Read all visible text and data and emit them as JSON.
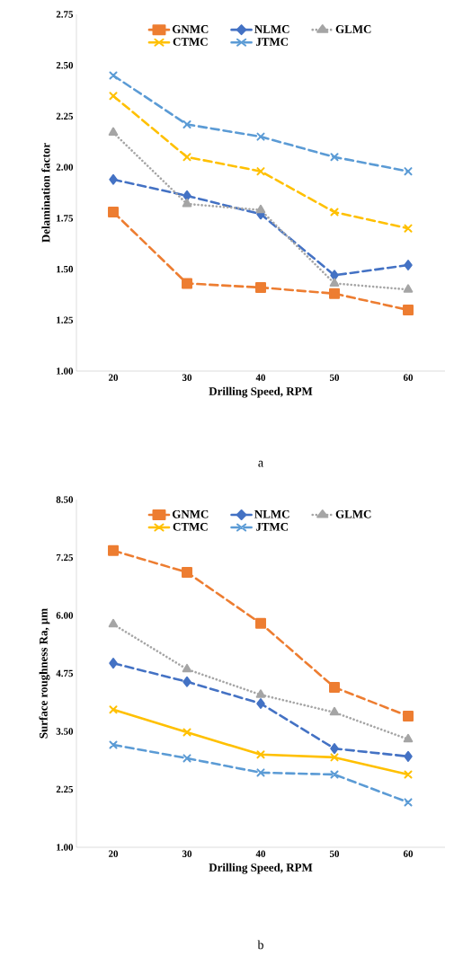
{
  "chart_data": [
    {
      "type": "line",
      "categories": [
        "20",
        "30",
        "40",
        "50",
        "60"
      ],
      "xlabel": "Drilling Speed, RPM",
      "ylabel": "Delamination factor",
      "ylim": [
        1.0,
        2.75
      ],
      "yticks": [
        {
          "value": 1.0,
          "label": "1.00"
        },
        {
          "value": 1.25,
          "label": "1.25"
        },
        {
          "value": 1.5,
          "label": "1.50"
        },
        {
          "value": 1.75,
          "label": "1.75"
        },
        {
          "value": 2.0,
          "label": "2.00"
        },
        {
          "value": 2.25,
          "label": "2.25"
        },
        {
          "value": 2.5,
          "label": "2.50"
        },
        {
          "value": 2.75,
          "label": "2.75"
        }
      ],
      "legend": "top",
      "annotations": [
        "a"
      ],
      "series": [
        {
          "name": "GNMC",
          "color": "#ed7d31",
          "marker": "square",
          "line_style": "dashed",
          "values": [
            1.78,
            1.43,
            1.41,
            1.38,
            1.3
          ]
        },
        {
          "name": "NLMC",
          "color": "#4472c4",
          "marker": "diamond",
          "line_style": "dashed",
          "values": [
            1.94,
            1.86,
            1.77,
            1.47,
            1.52
          ]
        },
        {
          "name": "GLMC",
          "color": "#a5a5a5",
          "marker": "triangle",
          "line_style": "dotted",
          "values": [
            2.17,
            1.82,
            1.79,
            1.43,
            1.4
          ]
        },
        {
          "name": "CTMC",
          "color": "#ffc000",
          "marker": "cross",
          "line_style": "dashed",
          "values": [
            2.35,
            2.05,
            1.98,
            1.78,
            1.7
          ]
        },
        {
          "name": "JTMC",
          "color": "#5b9bd5",
          "marker": "cross",
          "line_style": "dashed",
          "values": [
            2.45,
            2.21,
            2.15,
            2.05,
            1.98
          ]
        }
      ]
    },
    {
      "type": "line",
      "categories": [
        "20",
        "30",
        "40",
        "50",
        "60"
      ],
      "xlabel": "Drilling Speed, RPM",
      "ylabel": "Surface roughness Ra, µm",
      "ylim": [
        1.0,
        8.5
      ],
      "yticks": [
        {
          "value": 1.0,
          "label": "1.00"
        },
        {
          "value": 2.25,
          "label": "2.25"
        },
        {
          "value": 3.5,
          "label": "3.50"
        },
        {
          "value": 4.75,
          "label": "4.75"
        },
        {
          "value": 6.0,
          "label": "6.00"
        },
        {
          "value": 7.25,
          "label": "7.25"
        },
        {
          "value": 8.5,
          "label": "8.50"
        }
      ],
      "legend": "top",
      "annotations": [
        "b"
      ],
      "series": [
        {
          "name": "GNMC",
          "color": "#ed7d31",
          "marker": "square",
          "line_style": "dashed",
          "values": [
            7.4,
            6.93,
            5.83,
            4.45,
            3.83
          ]
        },
        {
          "name": "NLMC",
          "color": "#4472c4",
          "marker": "diamond",
          "line_style": "dashed",
          "values": [
            4.97,
            4.57,
            4.1,
            3.13,
            2.96
          ]
        },
        {
          "name": "GLMC",
          "color": "#a5a5a5",
          "marker": "triangle",
          "line_style": "dotted",
          "values": [
            5.81,
            4.84,
            4.29,
            3.91,
            3.33
          ]
        },
        {
          "name": "CTMC",
          "color": "#ffc000",
          "marker": "cross",
          "line_style": "solid",
          "values": [
            3.97,
            3.48,
            3.0,
            2.94,
            2.57
          ]
        },
        {
          "name": "JTMC",
          "color": "#5b9bd5",
          "marker": "cross",
          "line_style": "dashed",
          "values": [
            3.21,
            2.92,
            2.61,
            2.57,
            1.97
          ]
        }
      ]
    }
  ]
}
